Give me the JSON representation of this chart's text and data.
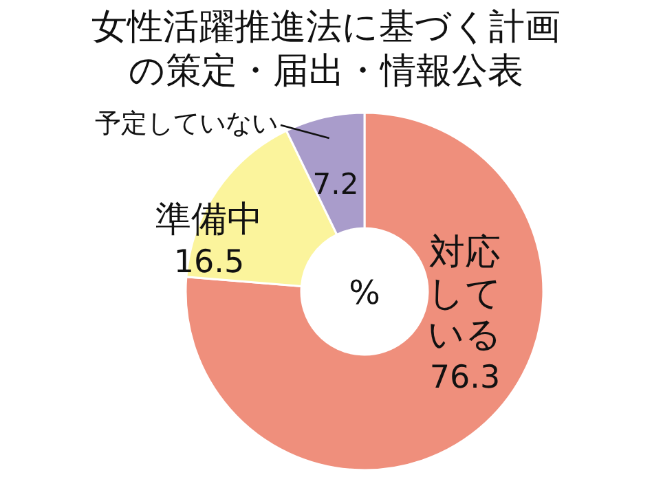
{
  "chart_data": {
    "type": "donut",
    "title": "女性活躍推進法に基づく計画の策定・届出・情報公表",
    "categories": [
      "対応している",
      "準備中",
      "予定していない"
    ],
    "values": [
      76.3,
      16.5,
      7.2
    ],
    "colors": [
      "#ef8f7c",
      "#fbf49c",
      "#a99ccb"
    ],
    "data_labels": true,
    "annotations": [
      "%"
    ]
  }
}
